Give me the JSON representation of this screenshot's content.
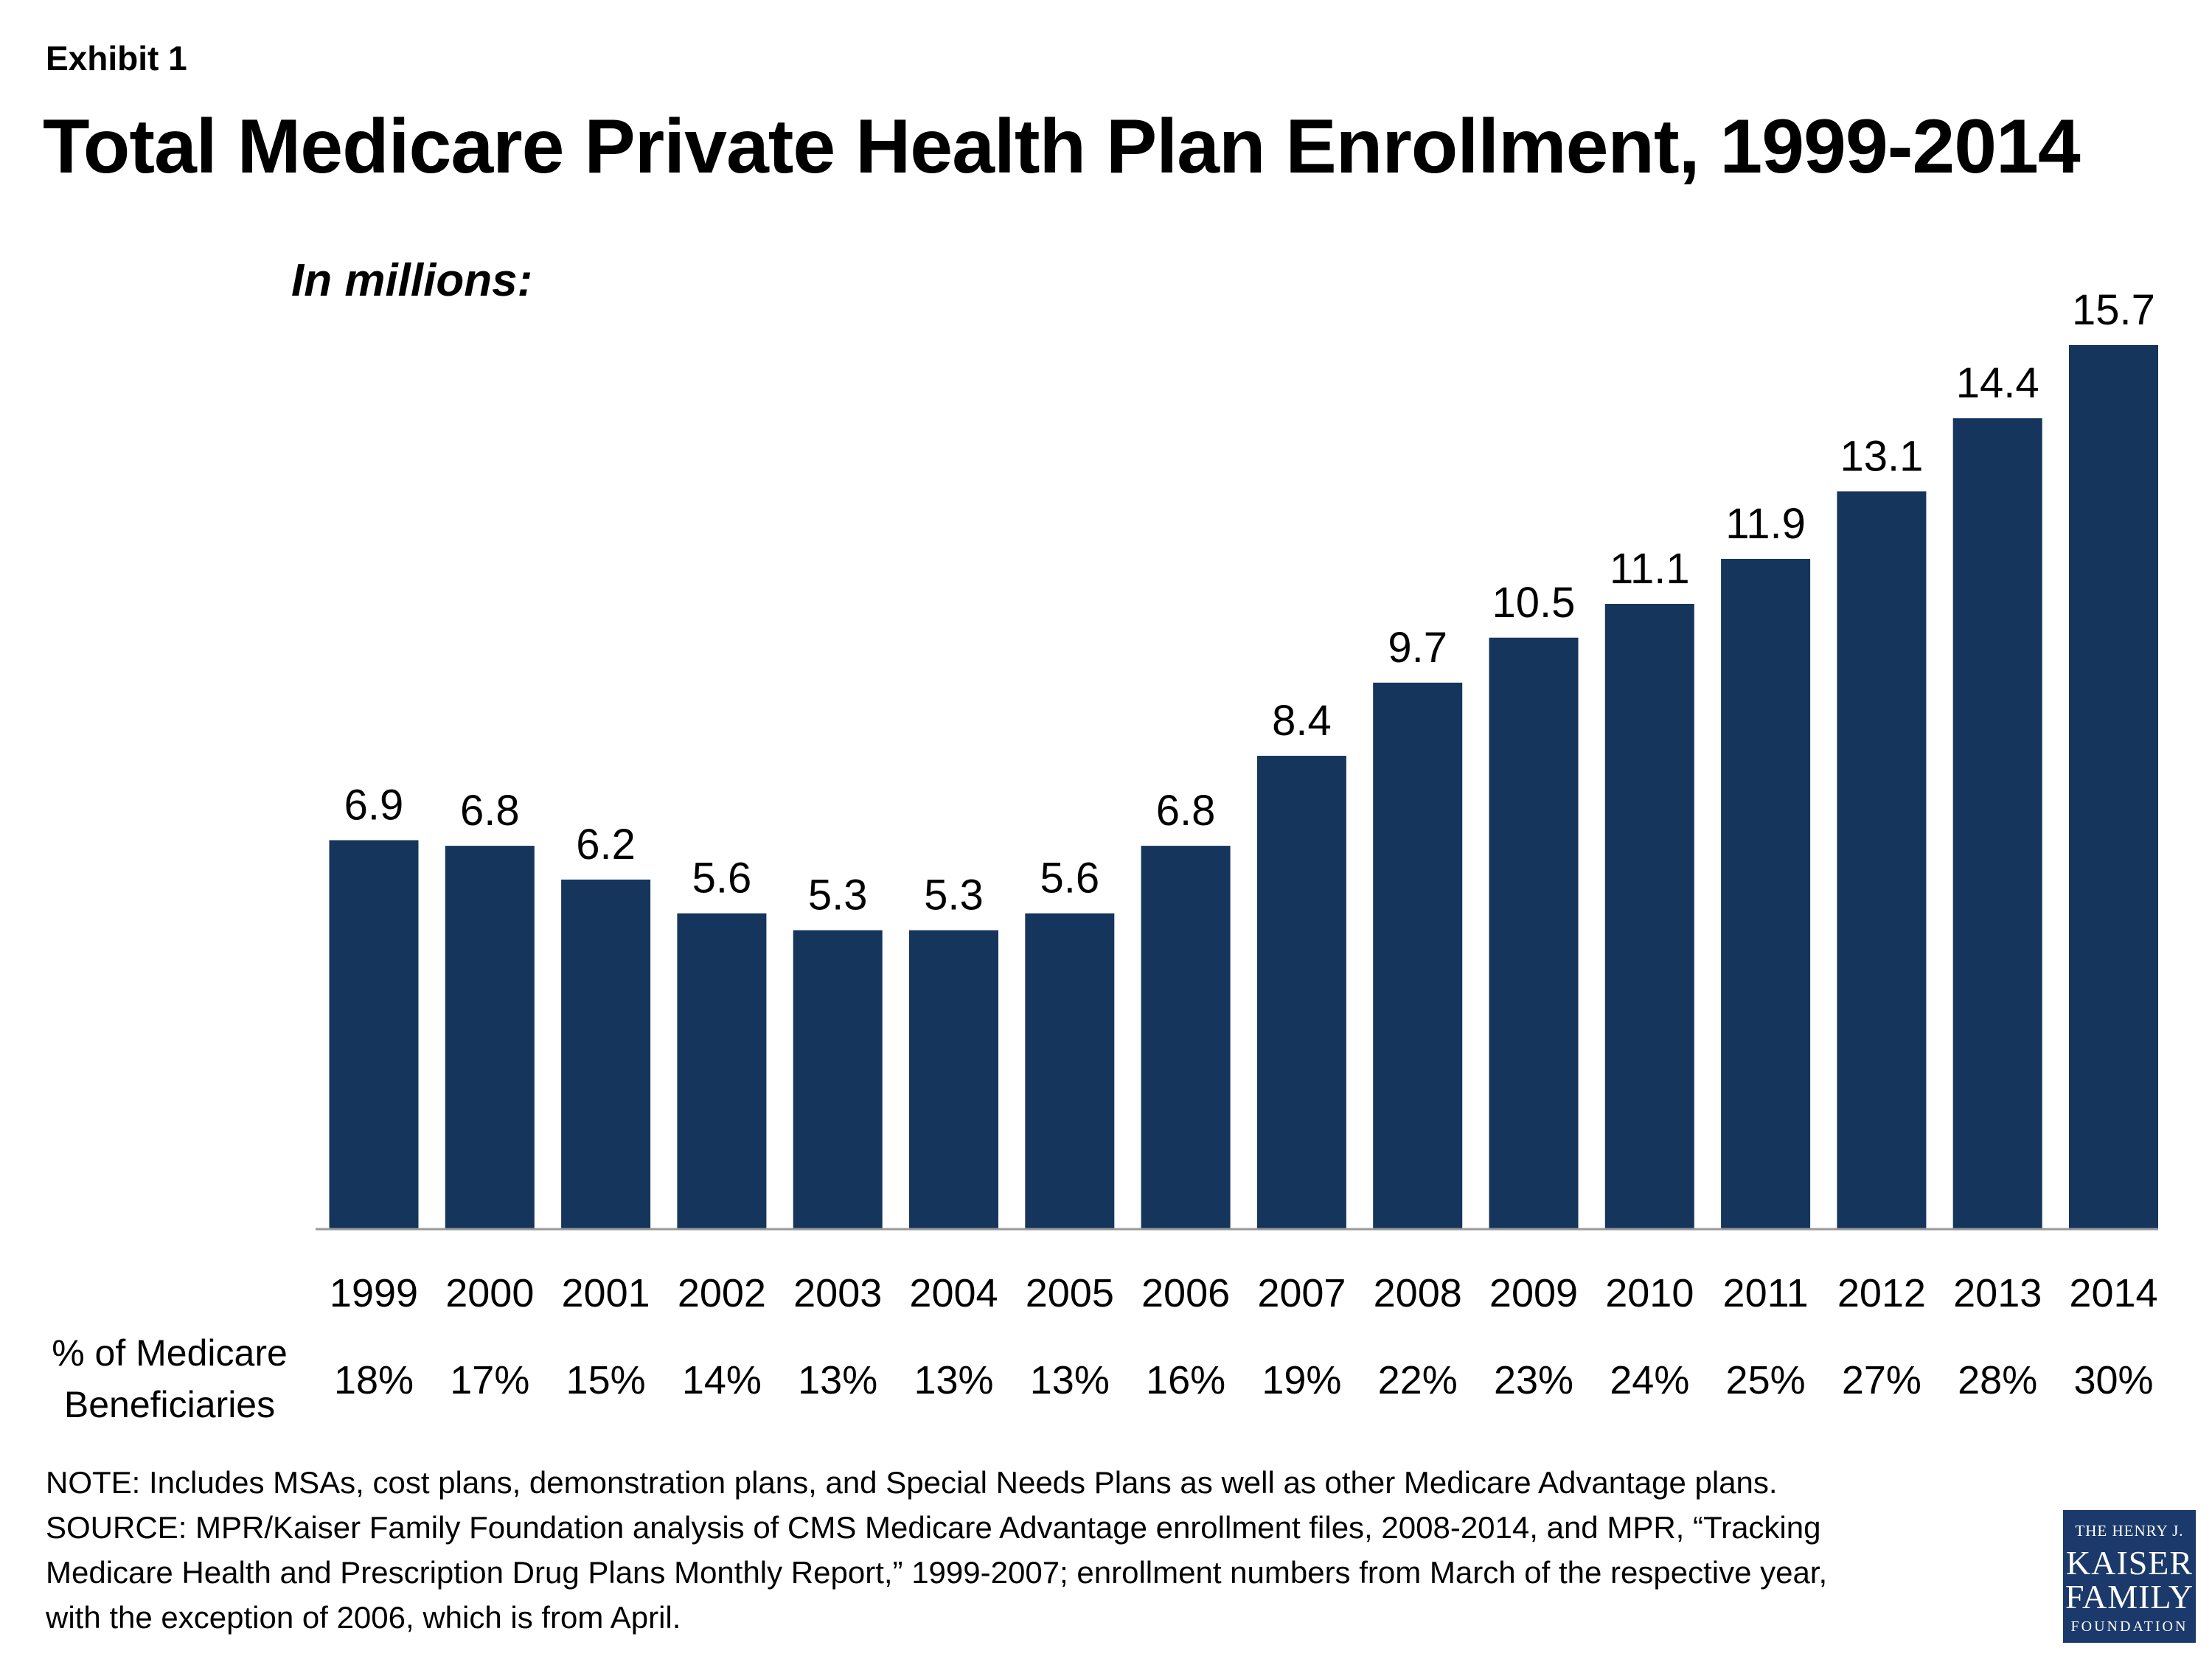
{
  "header": {
    "exhibit": "Exhibit 1",
    "title": "Total Medicare Private Health Plan Enrollment, 1999-2014",
    "units": "In millions:"
  },
  "chart_data": {
    "type": "bar",
    "categories": [
      "1999",
      "2000",
      "2001",
      "2002",
      "2003",
      "2004",
      "2005",
      "2006",
      "2007",
      "2008",
      "2009",
      "2010",
      "2011",
      "2012",
      "2013",
      "2014"
    ],
    "values": [
      6.9,
      6.8,
      6.2,
      5.6,
      5.3,
      5.3,
      5.6,
      6.8,
      8.4,
      9.7,
      10.5,
      11.1,
      11.9,
      13.1,
      14.4,
      15.7
    ],
    "value_labels": [
      "6.9",
      "6.8",
      "6.2",
      "5.6",
      "5.3",
      "5.3",
      "5.6",
      "6.8",
      "8.4",
      "9.7",
      "10.5",
      "11.1",
      "11.9",
      "13.1",
      "14.4",
      "15.7"
    ],
    "secondary_row_label": "% of Medicare Beneficiaries",
    "secondary_row": [
      "18%",
      "17%",
      "15%",
      "14%",
      "13%",
      "13%",
      "13%",
      "16%",
      "19%",
      "22%",
      "23%",
      "24%",
      "25%",
      "27%",
      "28%",
      "30%"
    ],
    "ylim": [
      0,
      15.7
    ],
    "grid": false,
    "legend": "none",
    "bar_color": "#15355c"
  },
  "notes": {
    "line1": "NOTE:  Includes MSAs, cost plans, demonstration plans, and Special Needs Plans as well as other Medicare Advantage plans.",
    "line2": "SOURCE:  MPR/Kaiser Family Foundation analysis of CMS Medicare Advantage enrollment files, 2008-2014, and MPR, “Tracking",
    "line3": "Medicare Health and Prescription Drug Plans Monthly Report,” 1999-2007; enrollment numbers from March of the respective year,",
    "line4": "with the exception of 2006, which is from April."
  },
  "logo": {
    "line1": "THE HENRY J.",
    "line2": "KAISER",
    "line3": "FAMILY",
    "line4": "FOUNDATION"
  }
}
